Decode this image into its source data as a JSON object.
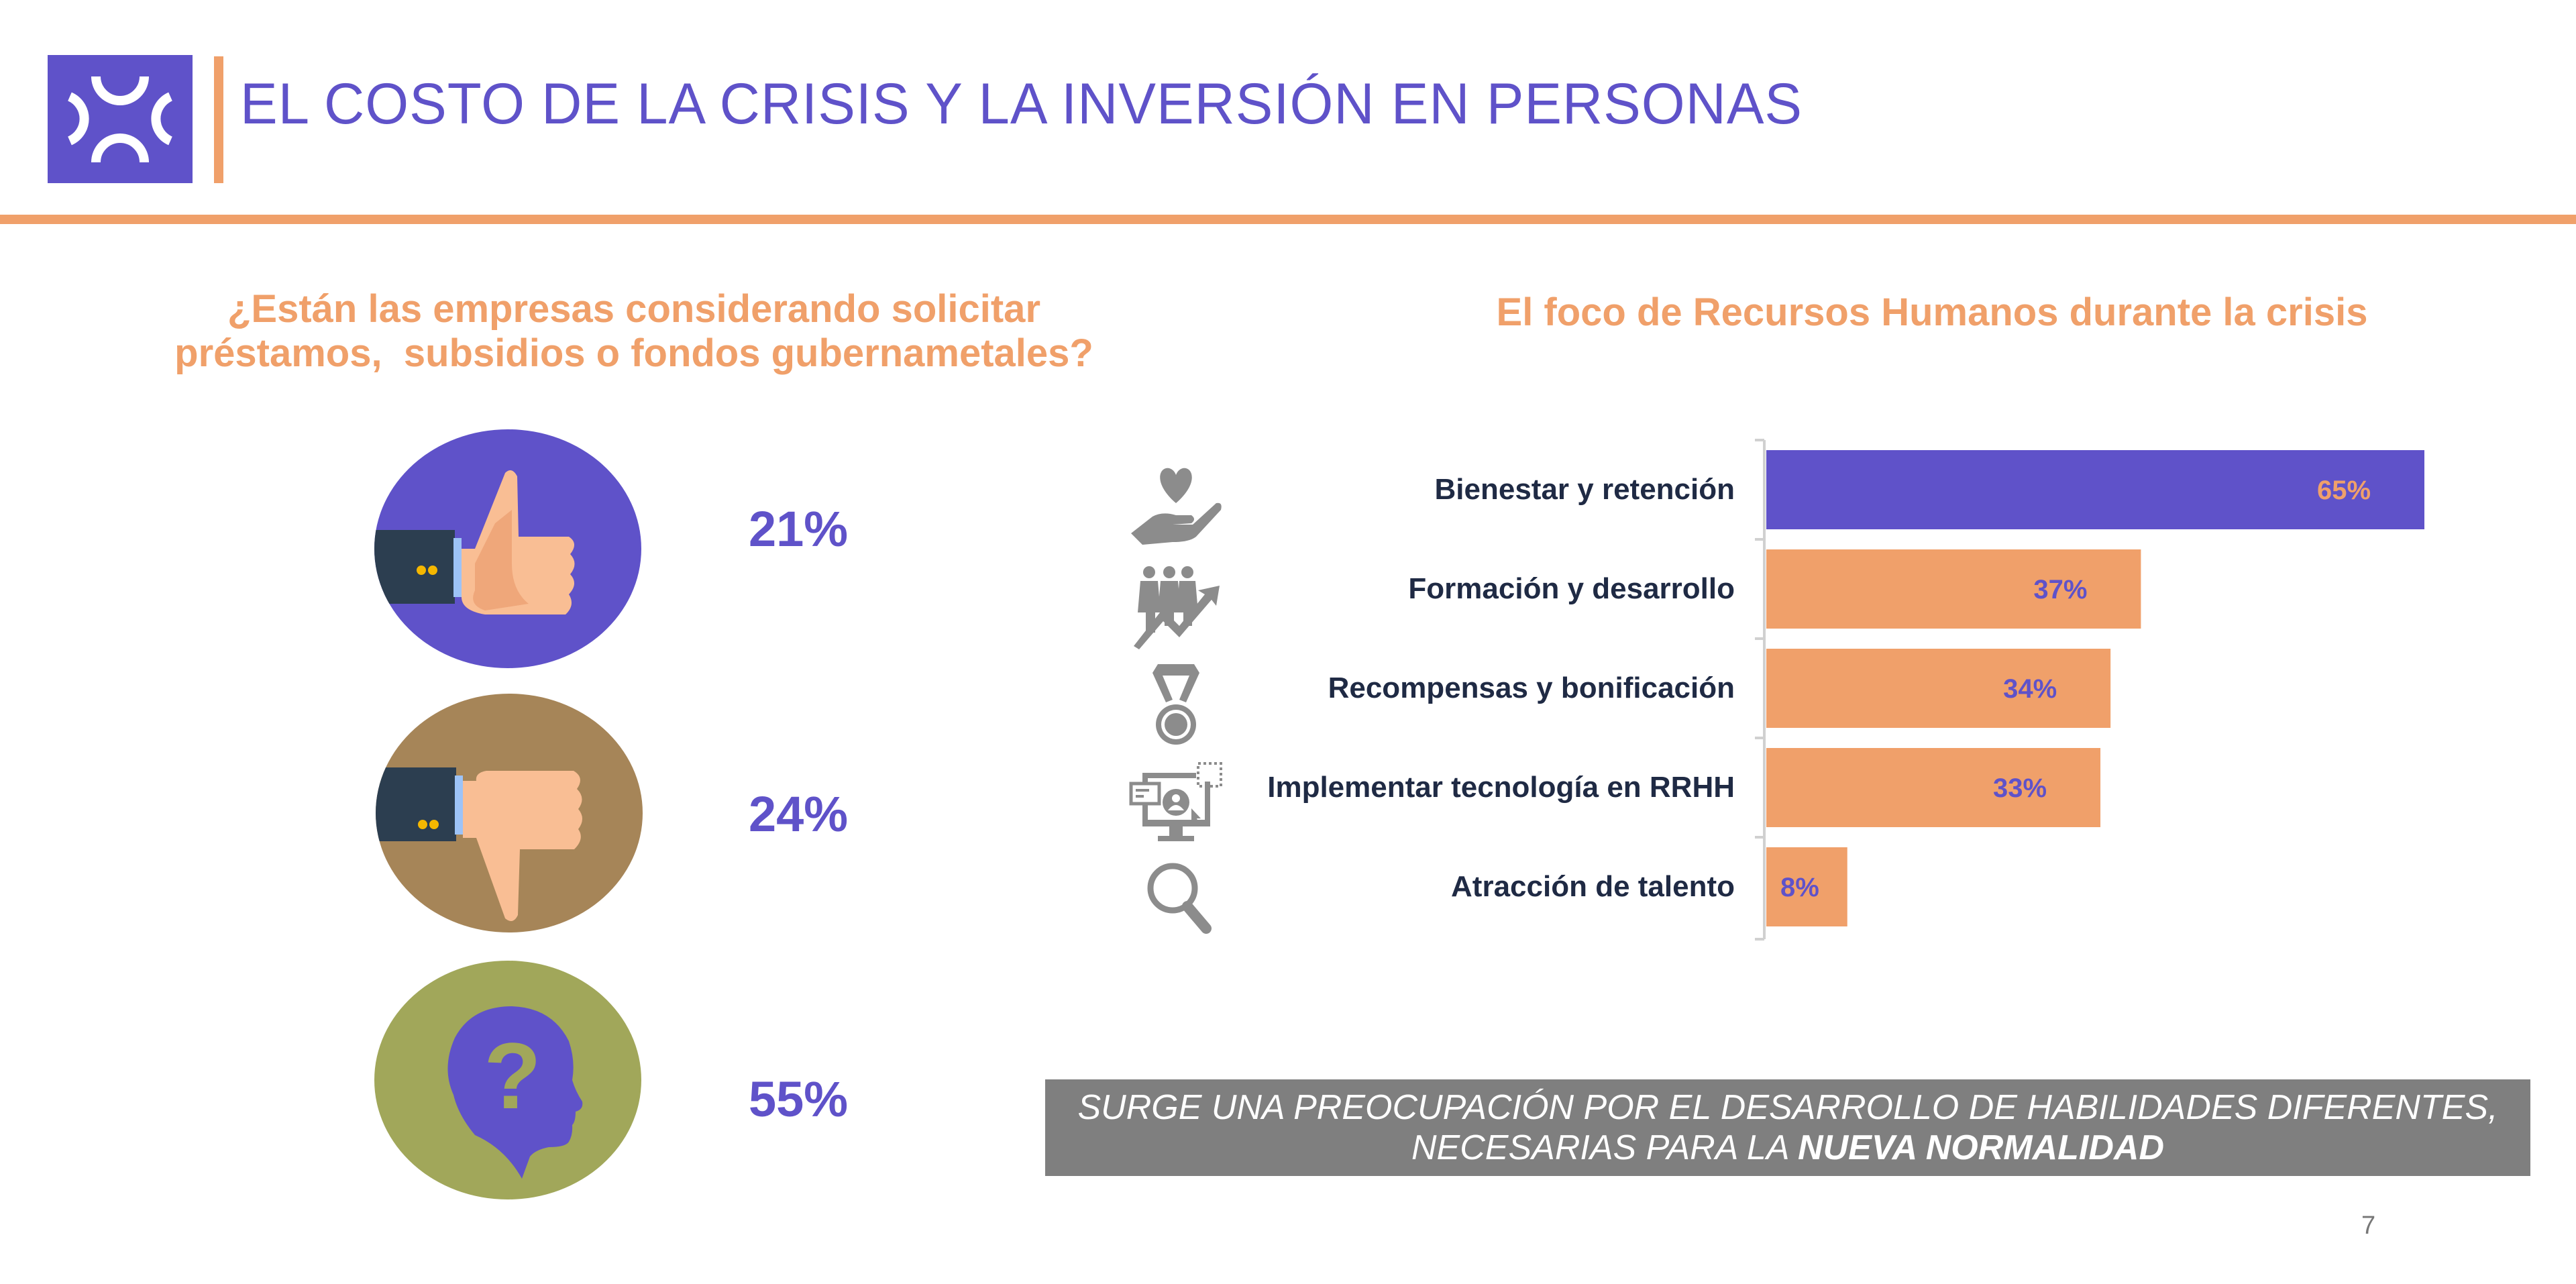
{
  "header": {
    "logo_icon": "brackets-x-logo",
    "title": "EL COSTO DE LA CRISIS Y LA INVERSIÓN EN PERSONAS"
  },
  "left_panel": {
    "question_line1": "¿Están las empresas considerando solicitar",
    "question_line2": "préstamos,  subsidios o fondos gubernametales?",
    "answers": [
      {
        "icon": "thumbs-up-icon",
        "value": "21%",
        "circle_color": "#5F52C9"
      },
      {
        "icon": "thumbs-down-icon",
        "value": "24%",
        "circle_color": "#A68558"
      },
      {
        "icon": "head-question-icon",
        "value": "55%",
        "circle_color": "#A1A75A"
      }
    ]
  },
  "right_panel": {
    "title": "El foco de Recursos Humanos durante la crisis"
  },
  "chart_data": {
    "type": "bar",
    "orientation": "horizontal",
    "title": "El foco de Recursos Humanos durante la crisis",
    "categories": [
      "Bienestar y retención",
      "Formación y desarrollo",
      "Recompensas y bonificación",
      "Implementar tecnología en RRHH",
      "Atracción de talento"
    ],
    "values": [
      65,
      37,
      34,
      33,
      8
    ],
    "data_labels": [
      "65%",
      "37%",
      "34%",
      "33%",
      "8%"
    ],
    "icons": [
      "heart-hand-icon",
      "people-growth-icon",
      "medal-icon",
      "monitor-user-icon",
      "magnifier-icon"
    ],
    "bar_colors": [
      "#5F52C9",
      "#F0A06A",
      "#F0A06A",
      "#F0A06A",
      "#F0A06A"
    ],
    "label_colors": [
      "#F0A06A",
      "#5F52C9",
      "#5F52C9",
      "#5F52C9",
      "#5F52C9"
    ],
    "xlabel": "",
    "ylabel": "",
    "xlim": [
      0,
      65
    ],
    "grid": false,
    "legend": "none"
  },
  "banner": {
    "line1": "SURGE UNA PREOCUPACIÓN POR EL DESARROLLO DE HABILIDADES DIFERENTES,",
    "line2_prefix": "NECESARIAS PARA LA ",
    "line2_bold": "NUEVA NORMALIDAD"
  },
  "footer": {
    "page_number": "7"
  },
  "colors": {
    "purple": "#5F52C9",
    "orange": "#F0A06A",
    "dark_text": "#1F2A44",
    "icon_gray": "#8C8C8C",
    "banner_gray": "#7F7F7F"
  }
}
